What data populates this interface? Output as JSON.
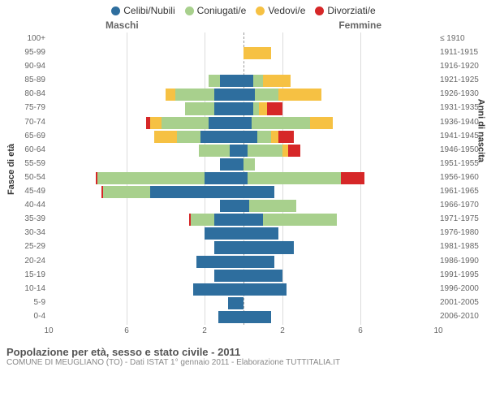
{
  "chart": {
    "type": "population-pyramid",
    "legend": [
      {
        "label": "Celibi/Nubili",
        "color": "#2e6e9e"
      },
      {
        "label": "Coniugati/e",
        "color": "#a8d08d"
      },
      {
        "label": "Vedovi/e",
        "color": "#f6c143"
      },
      {
        "label": "Divorziati/e",
        "color": "#d62728"
      }
    ],
    "gender_labels": {
      "male": "Maschi",
      "female": "Femmine"
    },
    "y_left_label": "Fasce di età",
    "y_right_label": "Anni di nascita",
    "x_max": 10,
    "x_ticks": [
      10,
      6,
      2,
      2,
      6,
      10
    ],
    "grid_color": "#dcdcdc",
    "bg_color": "#ffffff",
    "center_line_color": "#999999",
    "bands": [
      {
        "age": "100+",
        "birth": "≤ 1910",
        "m": [
          0,
          0,
          0,
          0
        ],
        "f": [
          0,
          0,
          0,
          0
        ]
      },
      {
        "age": "95-99",
        "birth": "1911-1915",
        "m": [
          0,
          0,
          0,
          0
        ],
        "f": [
          0,
          0,
          1.4,
          0
        ]
      },
      {
        "age": "90-94",
        "birth": "1916-1920",
        "m": [
          0,
          0,
          0,
          0
        ],
        "f": [
          0,
          0,
          0,
          0
        ]
      },
      {
        "age": "85-89",
        "birth": "1921-1925",
        "m": [
          1.2,
          0.6,
          0,
          0
        ],
        "f": [
          0.5,
          0.5,
          1.4,
          0
        ]
      },
      {
        "age": "80-84",
        "birth": "1926-1930",
        "m": [
          1.5,
          2.0,
          0.5,
          0
        ],
        "f": [
          0.6,
          1.2,
          2.2,
          0
        ]
      },
      {
        "age": "75-79",
        "birth": "1931-1935",
        "m": [
          1.5,
          1.5,
          0,
          0
        ],
        "f": [
          0.5,
          0.3,
          0.4,
          0.8
        ]
      },
      {
        "age": "70-74",
        "birth": "1936-1940",
        "m": [
          1.8,
          2.4,
          0.6,
          0.2
        ],
        "f": [
          0.4,
          3.0,
          1.2,
          0
        ]
      },
      {
        "age": "65-69",
        "birth": "1941-1945",
        "m": [
          2.2,
          1.2,
          1.2,
          0
        ],
        "f": [
          0.7,
          0.7,
          0.4,
          0.8
        ]
      },
      {
        "age": "60-64",
        "birth": "1946-1950",
        "m": [
          0.7,
          1.6,
          0,
          0
        ],
        "f": [
          0.2,
          1.8,
          0.3,
          0.6
        ]
      },
      {
        "age": "55-59",
        "birth": "1951-1955",
        "m": [
          1.2,
          0,
          0,
          0
        ],
        "f": [
          0,
          0.6,
          0,
          0
        ]
      },
      {
        "age": "50-54",
        "birth": "1956-1960",
        "m": [
          2.0,
          5.5,
          0,
          0.1
        ],
        "f": [
          0.2,
          4.8,
          0,
          1.2
        ]
      },
      {
        "age": "45-49",
        "birth": "1961-1965",
        "m": [
          4.8,
          2.4,
          0,
          0.1
        ],
        "f": [
          1.6,
          0,
          0,
          0
        ]
      },
      {
        "age": "40-44",
        "birth": "1966-1970",
        "m": [
          1.2,
          0,
          0,
          0
        ],
        "f": [
          0.3,
          2.4,
          0,
          0
        ]
      },
      {
        "age": "35-39",
        "birth": "1971-1975",
        "m": [
          1.5,
          1.2,
          0,
          0.1
        ],
        "f": [
          1.0,
          3.8,
          0,
          0
        ]
      },
      {
        "age": "30-34",
        "birth": "1976-1980",
        "m": [
          2.0,
          0,
          0,
          0
        ],
        "f": [
          1.8,
          0,
          0,
          0
        ]
      },
      {
        "age": "25-29",
        "birth": "1981-1985",
        "m": [
          1.5,
          0,
          0,
          0
        ],
        "f": [
          2.6,
          0,
          0,
          0
        ]
      },
      {
        "age": "20-24",
        "birth": "1986-1990",
        "m": [
          2.4,
          0,
          0,
          0
        ],
        "f": [
          1.6,
          0,
          0,
          0
        ]
      },
      {
        "age": "15-19",
        "birth": "1991-1995",
        "m": [
          1.5,
          0,
          0,
          0
        ],
        "f": [
          2.0,
          0,
          0,
          0
        ]
      },
      {
        "age": "10-14",
        "birth": "1996-2000",
        "m": [
          2.6,
          0,
          0,
          0
        ],
        "f": [
          2.2,
          0,
          0,
          0
        ]
      },
      {
        "age": "5-9",
        "birth": "2001-2005",
        "m": [
          0.8,
          0,
          0,
          0
        ],
        "f": [
          0,
          0,
          0,
          0
        ]
      },
      {
        "age": "0-4",
        "birth": "2006-2010",
        "m": [
          1.3,
          0,
          0,
          0
        ],
        "f": [
          1.4,
          0,
          0,
          0
        ]
      }
    ]
  },
  "caption": {
    "title": "Popolazione per età, sesso e stato civile - 2011",
    "subtitle": "COMUNE DI MEUGLIANO (TO) - Dati ISTAT 1° gennaio 2011 - Elaborazione TUTTITALIA.IT"
  }
}
